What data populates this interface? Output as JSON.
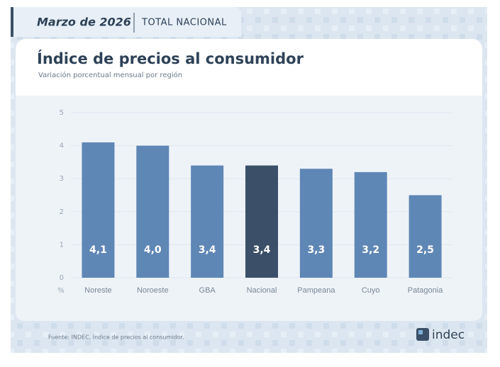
{
  "header": {
    "period": "Marzo de 2026",
    "scope": "TOTAL NACIONAL"
  },
  "chart_data": {
    "type": "bar",
    "title": "Índice de precios al consumidor",
    "subtitle": "Variación porcentual mensual por región",
    "y_unit": "%",
    "categories": [
      "Noreste",
      "Noroeste",
      "GBA",
      "Nacional",
      "Pampeana",
      "Cuyo",
      "Patagonia"
    ],
    "values": [
      4.1,
      4.0,
      3.4,
      3.4,
      3.3,
      3.2,
      2.5
    ],
    "value_labels": [
      "4,1",
      "4,0",
      "3,4",
      "3,4",
      "3,3",
      "3,2",
      "2,5"
    ],
    "colors": [
      "#5f87b5",
      "#5f87b5",
      "#5f87b5",
      "#3b5068",
      "#5f87b5",
      "#5f87b5",
      "#5f87b5"
    ],
    "ylim": [
      0,
      5
    ],
    "yticks": [
      0,
      1,
      2,
      3,
      4,
      5
    ],
    "grid": true
  },
  "footer": {
    "source": "Fuente: INDEC, Índice de precios al consumidor.",
    "logo": "indec"
  }
}
